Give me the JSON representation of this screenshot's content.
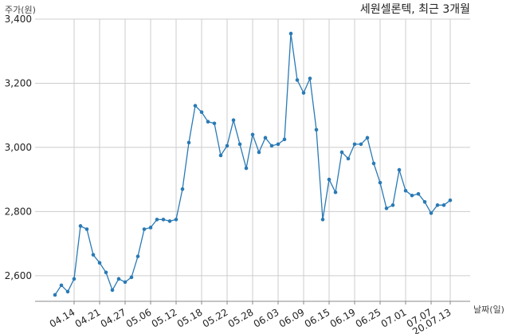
{
  "chart_data": {
    "type": "line",
    "title": "세원셀론텍, 최근 3개월",
    "ylabel": "주가(원)",
    "xlabel": "날짜(일)",
    "ylim": [
      2520,
      3400
    ],
    "grid": true,
    "line_color": "#2a7ab5",
    "yticks": [
      2600,
      2800,
      3000,
      3200,
      3400
    ],
    "ytick_labels": [
      "2,600",
      "2,800",
      "3,000",
      "3,200",
      "3,400"
    ],
    "xtick_labels": [
      "04.14",
      "04.21",
      "04.27",
      "05.06",
      "05.12",
      "05.18",
      "05.22",
      "05.28",
      "06.03",
      "06.09",
      "06.15",
      "06.19",
      "06.25",
      "07.01",
      "07.07",
      "20.07.13"
    ],
    "xtick_indices": [
      3,
      7,
      11,
      15,
      19,
      23,
      27,
      31,
      35,
      39,
      43,
      47,
      51,
      55,
      59,
      62
    ],
    "series": [
      {
        "values": [
          2540,
          2570,
          2550,
          2590,
          2755,
          2745,
          2665,
          2640,
          2610,
          2555,
          2590,
          2580,
          2595,
          2660,
          2745,
          2750,
          2775,
          2775,
          2770,
          2775,
          2870,
          3015,
          3130,
          3110,
          3080,
          3075,
          2975,
          3005,
          3085,
          3010,
          2935,
          3040,
          2985,
          3030,
          3005,
          3010,
          3025,
          3355,
          3210,
          3170,
          3215,
          3055,
          2775,
          2900,
          2860,
          2985,
          2965,
          3010,
          3010,
          3030,
          2950,
          2890,
          2810,
          2820,
          2930,
          2865,
          2850,
          2855,
          2830,
          2795,
          2820,
          2820,
          2835
        ]
      }
    ]
  }
}
